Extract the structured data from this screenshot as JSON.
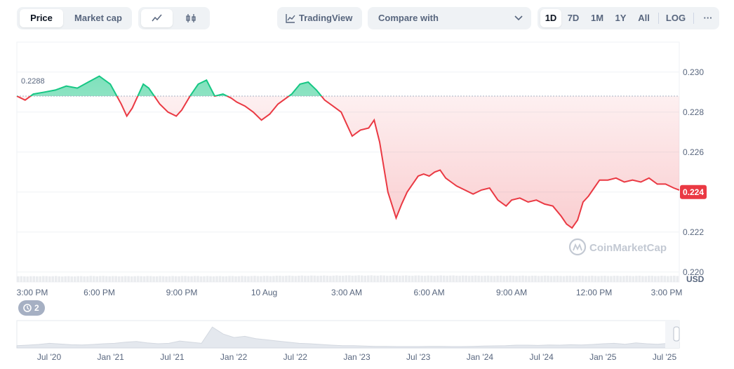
{
  "toolbar": {
    "price_label": "Price",
    "market_cap_label": "Market cap",
    "tradingview_label": "TradingView",
    "compare_placeholder": "Compare with",
    "ranges": [
      "1D",
      "7D",
      "1M",
      "1Y",
      "All"
    ],
    "active_range": "1D",
    "log_label": "LOG",
    "more_label": "···"
  },
  "colors": {
    "up": "#16c784",
    "down": "#ea3943",
    "grid": "#eff2f5",
    "axis_text": "#58667e",
    "volume": "#eaecef"
  },
  "chart_data": {
    "type": "area",
    "reference_value": 0.2288,
    "reference_label": "0.2288",
    "current_value": 0.224,
    "current_label": "0.224",
    "y_unit": "USD",
    "ylim": [
      0.2195,
      0.2315
    ],
    "y_ticks": [
      {
        "value": 0.23,
        "label": "0.230"
      },
      {
        "value": 0.228,
        "label": "0.228"
      },
      {
        "value": 0.226,
        "label": "0.226"
      },
      {
        "value": 0.224,
        "label": "0.224"
      },
      {
        "value": 0.222,
        "label": "0.222"
      },
      {
        "value": 0.22,
        "label": "0.220"
      }
    ],
    "xlim": [
      15,
      39.1
    ],
    "x_ticks": [
      {
        "value": 15,
        "label": "3:00 PM"
      },
      {
        "value": 18,
        "label": "6:00 PM"
      },
      {
        "value": 21,
        "label": "9:00 PM"
      },
      {
        "value": 24,
        "label": "10 Aug"
      },
      {
        "value": 27,
        "label": "3:00 AM"
      },
      {
        "value": 30,
        "label": "6:00 AM"
      },
      {
        "value": 33,
        "label": "9:00 AM"
      },
      {
        "value": 36,
        "label": "12:00 PM"
      },
      {
        "value": 39,
        "label": "3:00 PM"
      }
    ],
    "x": [
      15.0,
      15.3,
      15.6,
      16.0,
      16.4,
      16.8,
      17.2,
      17.6,
      18.0,
      18.4,
      18.8,
      19.0,
      19.2,
      19.4,
      19.6,
      19.8,
      20.0,
      20.2,
      20.5,
      20.8,
      21.0,
      21.3,
      21.6,
      21.9,
      22.2,
      22.5,
      22.8,
      23.0,
      23.3,
      23.6,
      23.9,
      24.2,
      24.5,
      24.8,
      25.0,
      25.3,
      25.6,
      25.9,
      26.2,
      26.5,
      26.8,
      27.0,
      27.2,
      27.5,
      27.8,
      28.0,
      28.2,
      28.5,
      28.8,
      29.0,
      29.2,
      29.4,
      29.6,
      29.8,
      30.0,
      30.2,
      30.4,
      30.6,
      30.8,
      31.0,
      31.3,
      31.6,
      31.9,
      32.2,
      32.5,
      32.8,
      33.0,
      33.3,
      33.6,
      33.9,
      34.2,
      34.5,
      34.8,
      35.0,
      35.2,
      35.4,
      35.6,
      35.8,
      36.0,
      36.2,
      36.5,
      36.8,
      37.1,
      37.4,
      37.7,
      38.0,
      38.3,
      38.6,
      38.9,
      39.1
    ],
    "values": [
      0.2288,
      0.2286,
      0.2289,
      0.229,
      0.2291,
      0.2293,
      0.2292,
      0.2295,
      0.2298,
      0.2294,
      0.2284,
      0.2278,
      0.2282,
      0.2288,
      0.2294,
      0.2292,
      0.2288,
      0.2284,
      0.228,
      0.2278,
      0.2281,
      0.2288,
      0.2294,
      0.2296,
      0.2288,
      0.2289,
      0.2287,
      0.2285,
      0.2283,
      0.228,
      0.2276,
      0.2279,
      0.2284,
      0.2287,
      0.2289,
      0.2294,
      0.2295,
      0.2291,
      0.2286,
      0.2283,
      0.228,
      0.2274,
      0.2268,
      0.2271,
      0.2272,
      0.2276,
      0.2265,
      0.224,
      0.2227,
      0.2234,
      0.224,
      0.2244,
      0.2248,
      0.2249,
      0.2248,
      0.225,
      0.2251,
      0.2247,
      0.2245,
      0.2243,
      0.2241,
      0.2239,
      0.2241,
      0.2242,
      0.2236,
      0.2233,
      0.2236,
      0.2237,
      0.2235,
      0.2236,
      0.2234,
      0.2233,
      0.2228,
      0.2224,
      0.2222,
      0.2226,
      0.2235,
      0.2238,
      0.2242,
      0.2246,
      0.2246,
      0.2247,
      0.2245,
      0.2246,
      0.2245,
      0.2247,
      0.2244,
      0.2244,
      0.2242,
      0.2241
    ],
    "volume": [
      0.55,
      0.55,
      0.56,
      0.56,
      0.55,
      0.55,
      0.56,
      0.57,
      0.57,
      0.56,
      0.56,
      0.56,
      0.56,
      0.57,
      0.57,
      0.56,
      0.56,
      0.56,
      0.56,
      0.57,
      0.57,
      0.57,
      0.56,
      0.56,
      0.56,
      0.57,
      0.57,
      0.57,
      0.58,
      0.58,
      0.58,
      0.59,
      0.6,
      0.6,
      0.6,
      0.61,
      0.61,
      0.61,
      0.61,
      0.62,
      0.62,
      0.63,
      0.63,
      0.63,
      0.63,
      0.63,
      0.62,
      0.62,
      0.62,
      0.62,
      0.62,
      0.62,
      0.62,
      0.61,
      0.61,
      0.62,
      0.62,
      0.62,
      0.62,
      0.61,
      0.61,
      0.61,
      0.6,
      0.6,
      0.6,
      0.6,
      0.6,
      0.6,
      0.6,
      0.6,
      0.6,
      0.59,
      0.59,
      0.59,
      0.59,
      0.59,
      0.59,
      0.59,
      0.59,
      0.59,
      0.59,
      0.59,
      0.59,
      0.59,
      0.59,
      0.59,
      0.59,
      0.59,
      0.59,
      0.59
    ]
  },
  "navigator": {
    "labels": [
      "Jul '20",
      "Jan '21",
      "Jul '21",
      "Jan '22",
      "Jul '22",
      "Jan '23",
      "Jul '23",
      "Jan '24",
      "Jul '24",
      "Jan '25",
      "Jul '25"
    ],
    "values": [
      0.1,
      0.12,
      0.15,
      0.2,
      0.17,
      0.14,
      0.13,
      0.15,
      0.18,
      0.2,
      0.25,
      0.28,
      0.22,
      0.18,
      0.2,
      0.3,
      0.25,
      0.2,
      0.9,
      0.6,
      0.45,
      0.5,
      0.4,
      0.35,
      0.3,
      0.25,
      0.2,
      0.18,
      0.15,
      0.12,
      0.1,
      0.1,
      0.08,
      0.07,
      0.07,
      0.06,
      0.06,
      0.06,
      0.07,
      0.07,
      0.06,
      0.06,
      0.07,
      0.08,
      0.09,
      0.1,
      0.12,
      0.12,
      0.11,
      0.13,
      0.12,
      0.14,
      0.13,
      0.15,
      0.18,
      0.2,
      0.16,
      0.22,
      0.18,
      0.16,
      0.2,
      0.24
    ]
  },
  "history": {
    "count": "2"
  },
  "watermark": "CoinMarketCap"
}
